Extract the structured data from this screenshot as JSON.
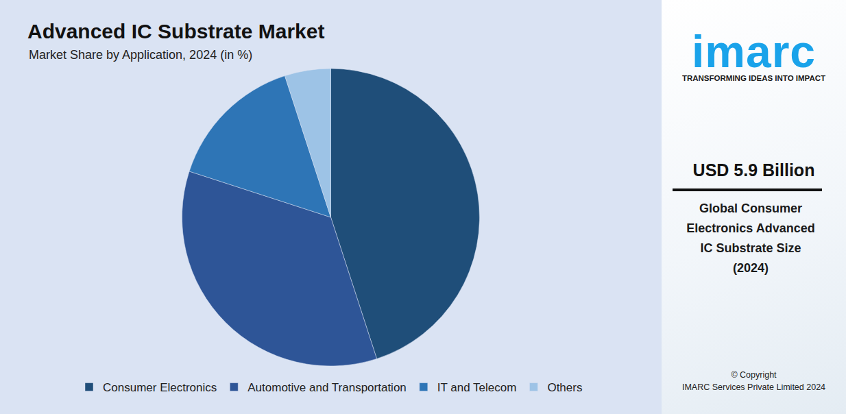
{
  "chart_data": {
    "type": "pie",
    "title": "Advanced IC Substrate Market",
    "subtitle": "Market Share by Application, 2024 (in %)",
    "categories": [
      "Consumer Electronics",
      "Automotive and Transportation",
      "IT and Telecom",
      "Others"
    ],
    "values": [
      45,
      35,
      15,
      5
    ],
    "colors": [
      "#1f4e79",
      "#2e5597",
      "#2e75b6",
      "#9dc3e6"
    ],
    "legend": "bottom",
    "data_labels": false
  },
  "side_panel": {
    "logo": "imarc",
    "tagline": "TRANSFORMING IDEAS INTO IMPACT",
    "value": "USD 5.9 Billion",
    "description": [
      "Global Consumer",
      "Electronics Advanced",
      "IC Substrate Size",
      "(2024)"
    ],
    "copyright": [
      "© Copyright",
      "IMARC Services Private Limited 2024"
    ]
  }
}
